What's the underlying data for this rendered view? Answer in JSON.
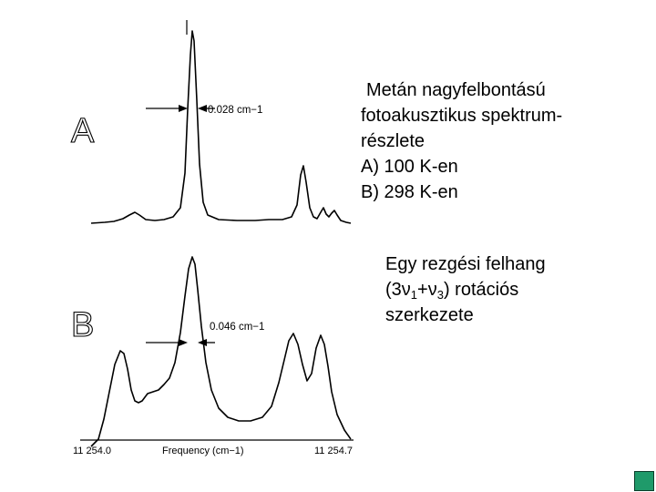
{
  "figure": {
    "panel_a": {
      "letter": "A",
      "width_label": "0.028 cm−1"
    },
    "panel_b": {
      "letter": "B",
      "width_label": "0.046 cm−1"
    },
    "x_axis": {
      "left_tick": "11 254.0",
      "label": "Frequency (cm−1)",
      "right_tick": "11 254.7"
    }
  },
  "caption": {
    "lines": [
      "Metán nagyfelbontású",
      "fotoakusztikus spektrum-",
      "részlete",
      "A) 100 K-en",
      "B) 298 K-en"
    ]
  },
  "subcaption": {
    "line1": "Egy rezgési felhang",
    "prefix": "(3",
    "nu": "ν",
    "sub1": "1",
    "plus": "+",
    "sub3": "3",
    "suffix": ") rotációs",
    "line3": "szerkezete"
  },
  "colors": {
    "corner_box": "#1f9a6a"
  }
}
